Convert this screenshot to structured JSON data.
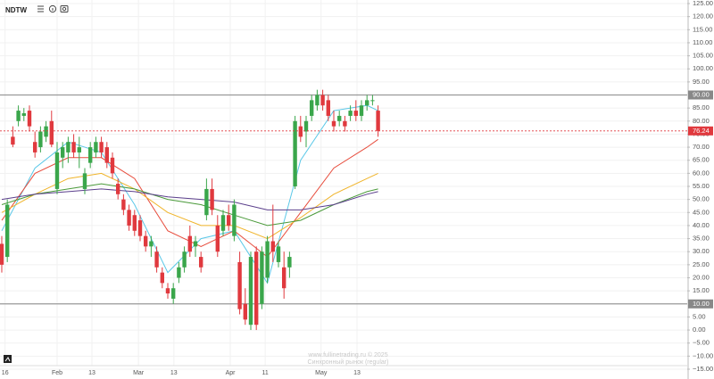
{
  "chart_data": {
    "type": "candlestick",
    "title": "NDTW",
    "watermark": [
      "www.fullinetrading.ru © 2025",
      "Синхронный рынок (regular)"
    ],
    "up_color": "#3aa64b",
    "down_color": "#e0393e",
    "open": [
      33,
      28,
      74,
      80,
      82,
      84,
      72,
      70,
      74,
      80,
      54,
      66,
      68,
      72,
      68,
      54,
      64,
      68,
      72,
      70,
      66,
      56,
      50,
      46,
      44,
      42,
      36,
      32,
      30,
      22,
      16,
      12,
      20,
      24,
      36,
      32,
      28,
      44,
      54,
      40,
      38,
      44,
      36,
      26,
      10,
      2,
      30,
      10,
      20,
      34,
      26,
      24,
      24,
      55,
      78,
      76,
      82,
      86,
      90,
      88,
      80,
      80,
      80,
      82,
      84,
      82,
      86,
      88,
      84
    ],
    "high": [
      36,
      50,
      78,
      86,
      85,
      86,
      76,
      78,
      80,
      84,
      72,
      72,
      74,
      75,
      74,
      62,
      72,
      74,
      74,
      72,
      68,
      58,
      52,
      48,
      46,
      44,
      38,
      36,
      32,
      24,
      18,
      18,
      26,
      32,
      40,
      36,
      30,
      58,
      58,
      44,
      46,
      48,
      50,
      30,
      16,
      30,
      32,
      32,
      36,
      48,
      34,
      30,
      30,
      82,
      82,
      82,
      90,
      92,
      92,
      90,
      84,
      84,
      82,
      86,
      88,
      88,
      90,
      90,
      86
    ],
    "low": [
      22,
      26,
      70,
      78,
      80,
      76,
      66,
      68,
      72,
      70,
      52,
      62,
      64,
      66,
      62,
      52,
      62,
      66,
      66,
      62,
      58,
      50,
      44,
      38,
      36,
      34,
      30,
      28,
      22,
      16,
      12,
      10,
      18,
      22,
      28,
      28,
      22,
      42,
      44,
      28,
      36,
      38,
      34,
      6,
      2,
      0,
      0,
      8,
      18,
      26,
      24,
      12,
      20,
      54,
      72,
      70,
      80,
      84,
      84,
      80,
      76,
      78,
      76,
      80,
      80,
      80,
      84,
      86,
      74
    ],
    "close": [
      25,
      48,
      71,
      84,
      83,
      78,
      68,
      76,
      78,
      71,
      68,
      70,
      72,
      68,
      70,
      60,
      70,
      72,
      68,
      64,
      60,
      52,
      46,
      40,
      38,
      36,
      32,
      34,
      24,
      18,
      14,
      16,
      24,
      30,
      30,
      34,
      24,
      54,
      46,
      30,
      44,
      40,
      48,
      8,
      4,
      28,
      2,
      30,
      34,
      30,
      32,
      16,
      28,
      80,
      74,
      80,
      88,
      90,
      86,
      82,
      78,
      82,
      78,
      84,
      82,
      86,
      88,
      88,
      76.24
    ],
    "lines": [
      {
        "color": "#5bc8e8",
        "x": [
          0,
          6,
          12,
          18,
          24,
          30,
          36,
          42,
          48,
          54,
          60,
          66,
          68
        ],
        "values": [
          38,
          62,
          72,
          68,
          48,
          22,
          35,
          38,
          18,
          65,
          84,
          86,
          84
        ]
      },
      {
        "color": "#e74c3c",
        "x": [
          0,
          6,
          12,
          18,
          24,
          30,
          36,
          42,
          48,
          54,
          60,
          66,
          68
        ],
        "values": [
          42,
          60,
          66,
          66,
          58,
          38,
          32,
          38,
          28,
          45,
          62,
          70,
          73
        ]
      },
      {
        "color": "#f0b429",
        "x": [
          0,
          6,
          12,
          18,
          24,
          30,
          36,
          42,
          48,
          54,
          60,
          66,
          68
        ],
        "values": [
          45,
          52,
          58,
          60,
          54,
          45,
          40,
          40,
          35,
          43,
          52,
          58,
          60
        ]
      },
      {
        "color": "#4a9a3a",
        "x": [
          0,
          6,
          12,
          18,
          24,
          30,
          36,
          42,
          48,
          54,
          60,
          66,
          68
        ],
        "values": [
          48,
          52,
          54,
          56,
          54,
          50,
          48,
          44,
          40,
          42,
          48,
          53,
          54
        ]
      },
      {
        "color": "#5b3f8c",
        "x": [
          0,
          6,
          12,
          18,
          24,
          30,
          36,
          42,
          48,
          54,
          60,
          66,
          68
        ],
        "values": [
          50,
          52,
          53,
          54,
          53,
          51,
          50,
          49,
          46,
          46,
          48,
          52,
          53
        ]
      }
    ],
    "levels": [
      {
        "value": 90,
        "label": "90.00"
      },
      {
        "value": 10,
        "label": "10.00"
      }
    ],
    "last_price": {
      "value": 76.24,
      "label": "76.24"
    },
    "xlim": [
      -0.32,
      123.87
    ],
    "xticks": [
      {
        "value": 0.6,
        "label": "16"
      },
      {
        "value": 10,
        "label": "Feb"
      },
      {
        "value": 16.3,
        "label": "13"
      },
      {
        "value": 24.7,
        "label": "Mar"
      },
      {
        "value": 31.1,
        "label": "13"
      },
      {
        "value": 41.3,
        "label": "Apr"
      },
      {
        "value": 47.6,
        "label": "11"
      },
      {
        "value": 57.7,
        "label": "May"
      },
      {
        "value": 64.2,
        "label": "13"
      }
    ],
    "ylim": [
      -17.05,
      126.37
    ],
    "yticks": [
      {
        "value": 125,
        "label": "125.00"
      },
      {
        "value": 120,
        "label": "120.00"
      },
      {
        "value": 115,
        "label": "115.00"
      },
      {
        "value": 110,
        "label": "110.00"
      },
      {
        "value": 105,
        "label": "105.00"
      },
      {
        "value": 100,
        "label": "100.00"
      },
      {
        "value": 95,
        "label": "95.00"
      },
      {
        "value": 85,
        "label": "85.00"
      },
      {
        "value": 80,
        "label": "80.00"
      },
      {
        "value": 75,
        "label": "75.00"
      },
      {
        "value": 70,
        "label": "70.00"
      },
      {
        "value": 65,
        "label": "65.00"
      },
      {
        "value": 60,
        "label": "60.00"
      },
      {
        "value": 55,
        "label": "55.00"
      },
      {
        "value": 50,
        "label": "50.00"
      },
      {
        "value": 45,
        "label": "45.00"
      },
      {
        "value": 40,
        "label": "40.00"
      },
      {
        "value": 35,
        "label": "35.00"
      },
      {
        "value": 30,
        "label": "30.00"
      },
      {
        "value": 25,
        "label": "25.00"
      },
      {
        "value": 20,
        "label": "20.00"
      },
      {
        "value": 15,
        "label": "15.00"
      },
      {
        "value": 5,
        "label": "5.00"
      },
      {
        "value": 0,
        "label": "0.00"
      },
      {
        "value": -5,
        "label": "−5.00"
      },
      {
        "value": -10,
        "label": "−10.00"
      },
      {
        "value": -15,
        "label": "−15.00"
      }
    ],
    "grid": true
  }
}
